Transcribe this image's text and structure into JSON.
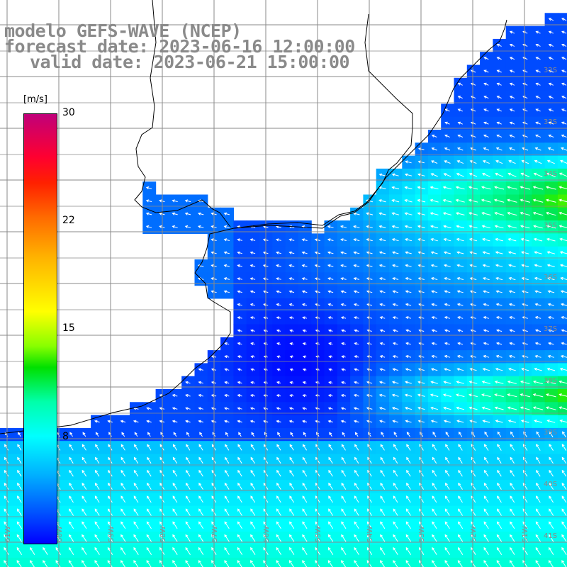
{
  "title": {
    "line1": "modelo GEFS-WAVE (NCEP)",
    "line2": "forecast date: 2023-06-16 12:00:00",
    "line3": "valid date: 2023-06-21 15:00:00"
  },
  "colorbar": {
    "units": "[m/s]",
    "min": 0,
    "max": 30,
    "tick_labels": [
      "30",
      "22",
      "15",
      "8"
    ],
    "tick_values": [
      30,
      22,
      15,
      8
    ],
    "colors": [
      "#0000ff",
      "#0050ff",
      "#00b0ff",
      "#00ffff",
      "#00ffaa",
      "#00e000",
      "#88ff00",
      "#ffff00",
      "#ffb000",
      "#ff6a00",
      "#ff2000",
      "#ff0030",
      "#c0007a"
    ]
  },
  "map": {
    "lat_labels": [
      "32S",
      "33S",
      "34S",
      "35S",
      "36S",
      "37S",
      "38S",
      "39S",
      "40S",
      "41S"
    ],
    "lon_labels": [
      "61W",
      "60W",
      "59W",
      "58W",
      "57W",
      "56W",
      "55W",
      "54W",
      "53W",
      "52W",
      "51W"
    ],
    "land_color": "#ffffff",
    "gridline_color": "#8a8a8a",
    "coastline_color": "#000000",
    "arrow_color": "#ffffff",
    "wind_direction": "from east / northeast"
  }
}
